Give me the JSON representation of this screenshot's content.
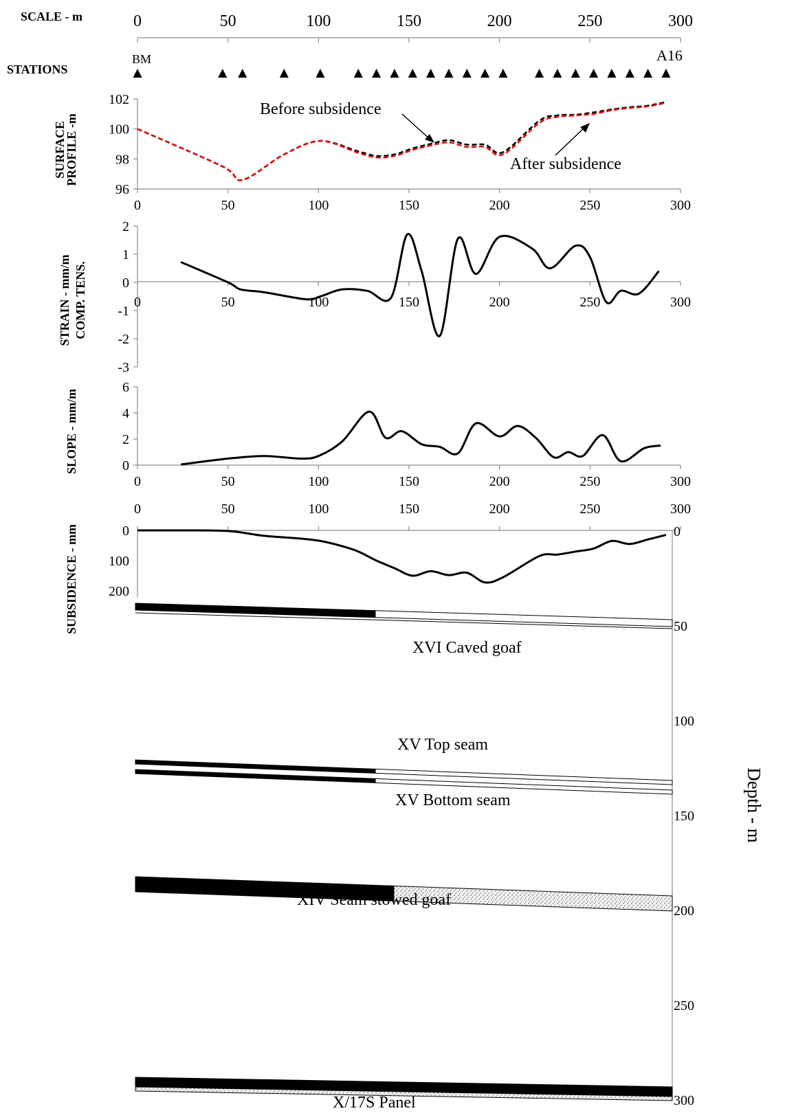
{
  "scale": {
    "label": "SCALE - m",
    "ticks": [
      0,
      50,
      100,
      150,
      200,
      250,
      300
    ]
  },
  "stations": {
    "label": "STATIONS",
    "start_label": "BM",
    "end_label": "A16",
    "positions": [
      0,
      47,
      58,
      81,
      101,
      122,
      132,
      142,
      152,
      162,
      172,
      182,
      192,
      202,
      222,
      232,
      242,
      252,
      262,
      272,
      282,
      292
    ]
  },
  "colors": {
    "before": "#000000",
    "after": "#e01010",
    "axis": "#8c8c8c"
  },
  "chart_data": [
    {
      "type": "line",
      "ylabel_line1": "SURFACE",
      "ylabel_line2": "PROFILE -m",
      "xlim": [
        0,
        300
      ],
      "ylim": [
        96,
        102
      ],
      "xticks": [
        0,
        50,
        100,
        150,
        200,
        250,
        300
      ],
      "yticks": [
        96,
        98,
        100,
        102
      ],
      "series": [
        {
          "name": "Before subsidence",
          "style": "dashed",
          "color": "#000000",
          "x": [
            0,
            47,
            58,
            81,
            101,
            122,
            132,
            142,
            152,
            162,
            172,
            182,
            192,
            202,
            222,
            232,
            242,
            252,
            262,
            272,
            282,
            292
          ],
          "y": [
            100.0,
            97.5,
            96.6,
            98.3,
            99.2,
            98.5,
            98.2,
            98.3,
            98.7,
            99.0,
            99.25,
            98.95,
            98.95,
            98.45,
            100.55,
            100.9,
            100.95,
            101.1,
            101.3,
            101.45,
            101.55,
            101.8
          ]
        },
        {
          "name": "After subsidence",
          "style": "dashed",
          "color": "#e01010",
          "x": [
            0,
            47,
            58,
            81,
            101,
            122,
            132,
            142,
            152,
            162,
            172,
            182,
            192,
            202,
            222,
            232,
            242,
            252,
            262,
            272,
            282,
            292
          ],
          "y": [
            100.0,
            97.5,
            96.6,
            98.3,
            99.2,
            98.4,
            98.1,
            98.2,
            98.6,
            98.9,
            99.1,
            98.8,
            98.8,
            98.3,
            100.4,
            100.8,
            100.9,
            101.0,
            101.25,
            101.4,
            101.5,
            101.75
          ]
        }
      ],
      "annotations": [
        "Before subsidence",
        "After subsidence"
      ]
    },
    {
      "type": "line",
      "ylabel_line1": "STRAIN - mm/m",
      "ylabel_line2": "COMP.   TENS.",
      "xlim": [
        0,
        300
      ],
      "ylim": [
        -3,
        2
      ],
      "xticks": [
        0,
        50,
        100,
        150,
        200,
        250,
        300
      ],
      "yticks": [
        -3,
        -2,
        -1,
        0,
        1,
        2
      ],
      "series": [
        {
          "x": [
            24,
            50,
            57,
            70,
            93,
            101,
            113,
            127,
            140,
            149,
            157,
            167,
            177,
            187,
            200,
            218,
            228,
            242,
            250,
            259,
            267,
            277,
            288
          ],
          "y": [
            0.72,
            0.0,
            -0.25,
            -0.35,
            -0.6,
            -0.5,
            -0.25,
            -0.3,
            -0.55,
            1.7,
            0.4,
            -1.9,
            1.55,
            0.3,
            1.62,
            1.2,
            0.5,
            1.3,
            0.9,
            -0.7,
            -0.3,
            -0.4,
            0.4
          ]
        }
      ]
    },
    {
      "type": "line",
      "ylabel": "SLOPE - mm/m",
      "xlim": [
        0,
        300
      ],
      "ylim": [
        0,
        6
      ],
      "xticks": [
        0,
        50,
        100,
        150,
        200,
        250,
        300
      ],
      "yticks": [
        0,
        2,
        4,
        6
      ],
      "series": [
        {
          "x": [
            24,
            50,
            70,
            90,
            100,
            113,
            128,
            137,
            146,
            157,
            167,
            177,
            187,
            200,
            210,
            220,
            230,
            238,
            246,
            257,
            267,
            280,
            289
          ],
          "y": [
            0.05,
            0.5,
            0.7,
            0.5,
            0.7,
            1.8,
            4.1,
            2.1,
            2.6,
            1.6,
            1.4,
            0.9,
            3.2,
            2.2,
            3.0,
            2.1,
            0.6,
            1.0,
            0.7,
            2.3,
            0.3,
            1.3,
            1.5
          ]
        }
      ]
    },
    {
      "type": "line",
      "ylabel": "SUBSIDENCE - mm",
      "xlim": [
        0,
        300
      ],
      "ylim": [
        0,
        200
      ],
      "xticks": [
        0,
        50,
        100,
        150,
        200,
        250,
        300
      ],
      "yticks": [
        0,
        100,
        200
      ],
      "series": [
        {
          "x": [
            0,
            24,
            50,
            70,
            90,
            101,
            113,
            122,
            132,
            142,
            152,
            162,
            172,
            182,
            192,
            202,
            222,
            232,
            242,
            252,
            262,
            272,
            282,
            292
          ],
          "y": [
            0,
            0,
            2,
            18,
            27,
            35,
            52,
            70,
            100,
            125,
            150,
            135,
            148,
            140,
            172,
            155,
            85,
            80,
            70,
            60,
            35,
            45,
            30,
            15
          ]
        }
      ]
    },
    {
      "type": "section",
      "ylabel": "Depth - m",
      "ylim": [
        0,
        300
      ],
      "yticks": [
        0,
        50,
        100,
        150,
        200,
        250,
        300
      ],
      "seams": [
        {
          "name": "XVI Caved goaf"
        },
        {
          "name": "XV Top seam"
        },
        {
          "name": "XV Bottom seam"
        },
        {
          "name": "XIV Seam stowed goaf"
        },
        {
          "name": "X/17S Panel"
        }
      ]
    }
  ]
}
